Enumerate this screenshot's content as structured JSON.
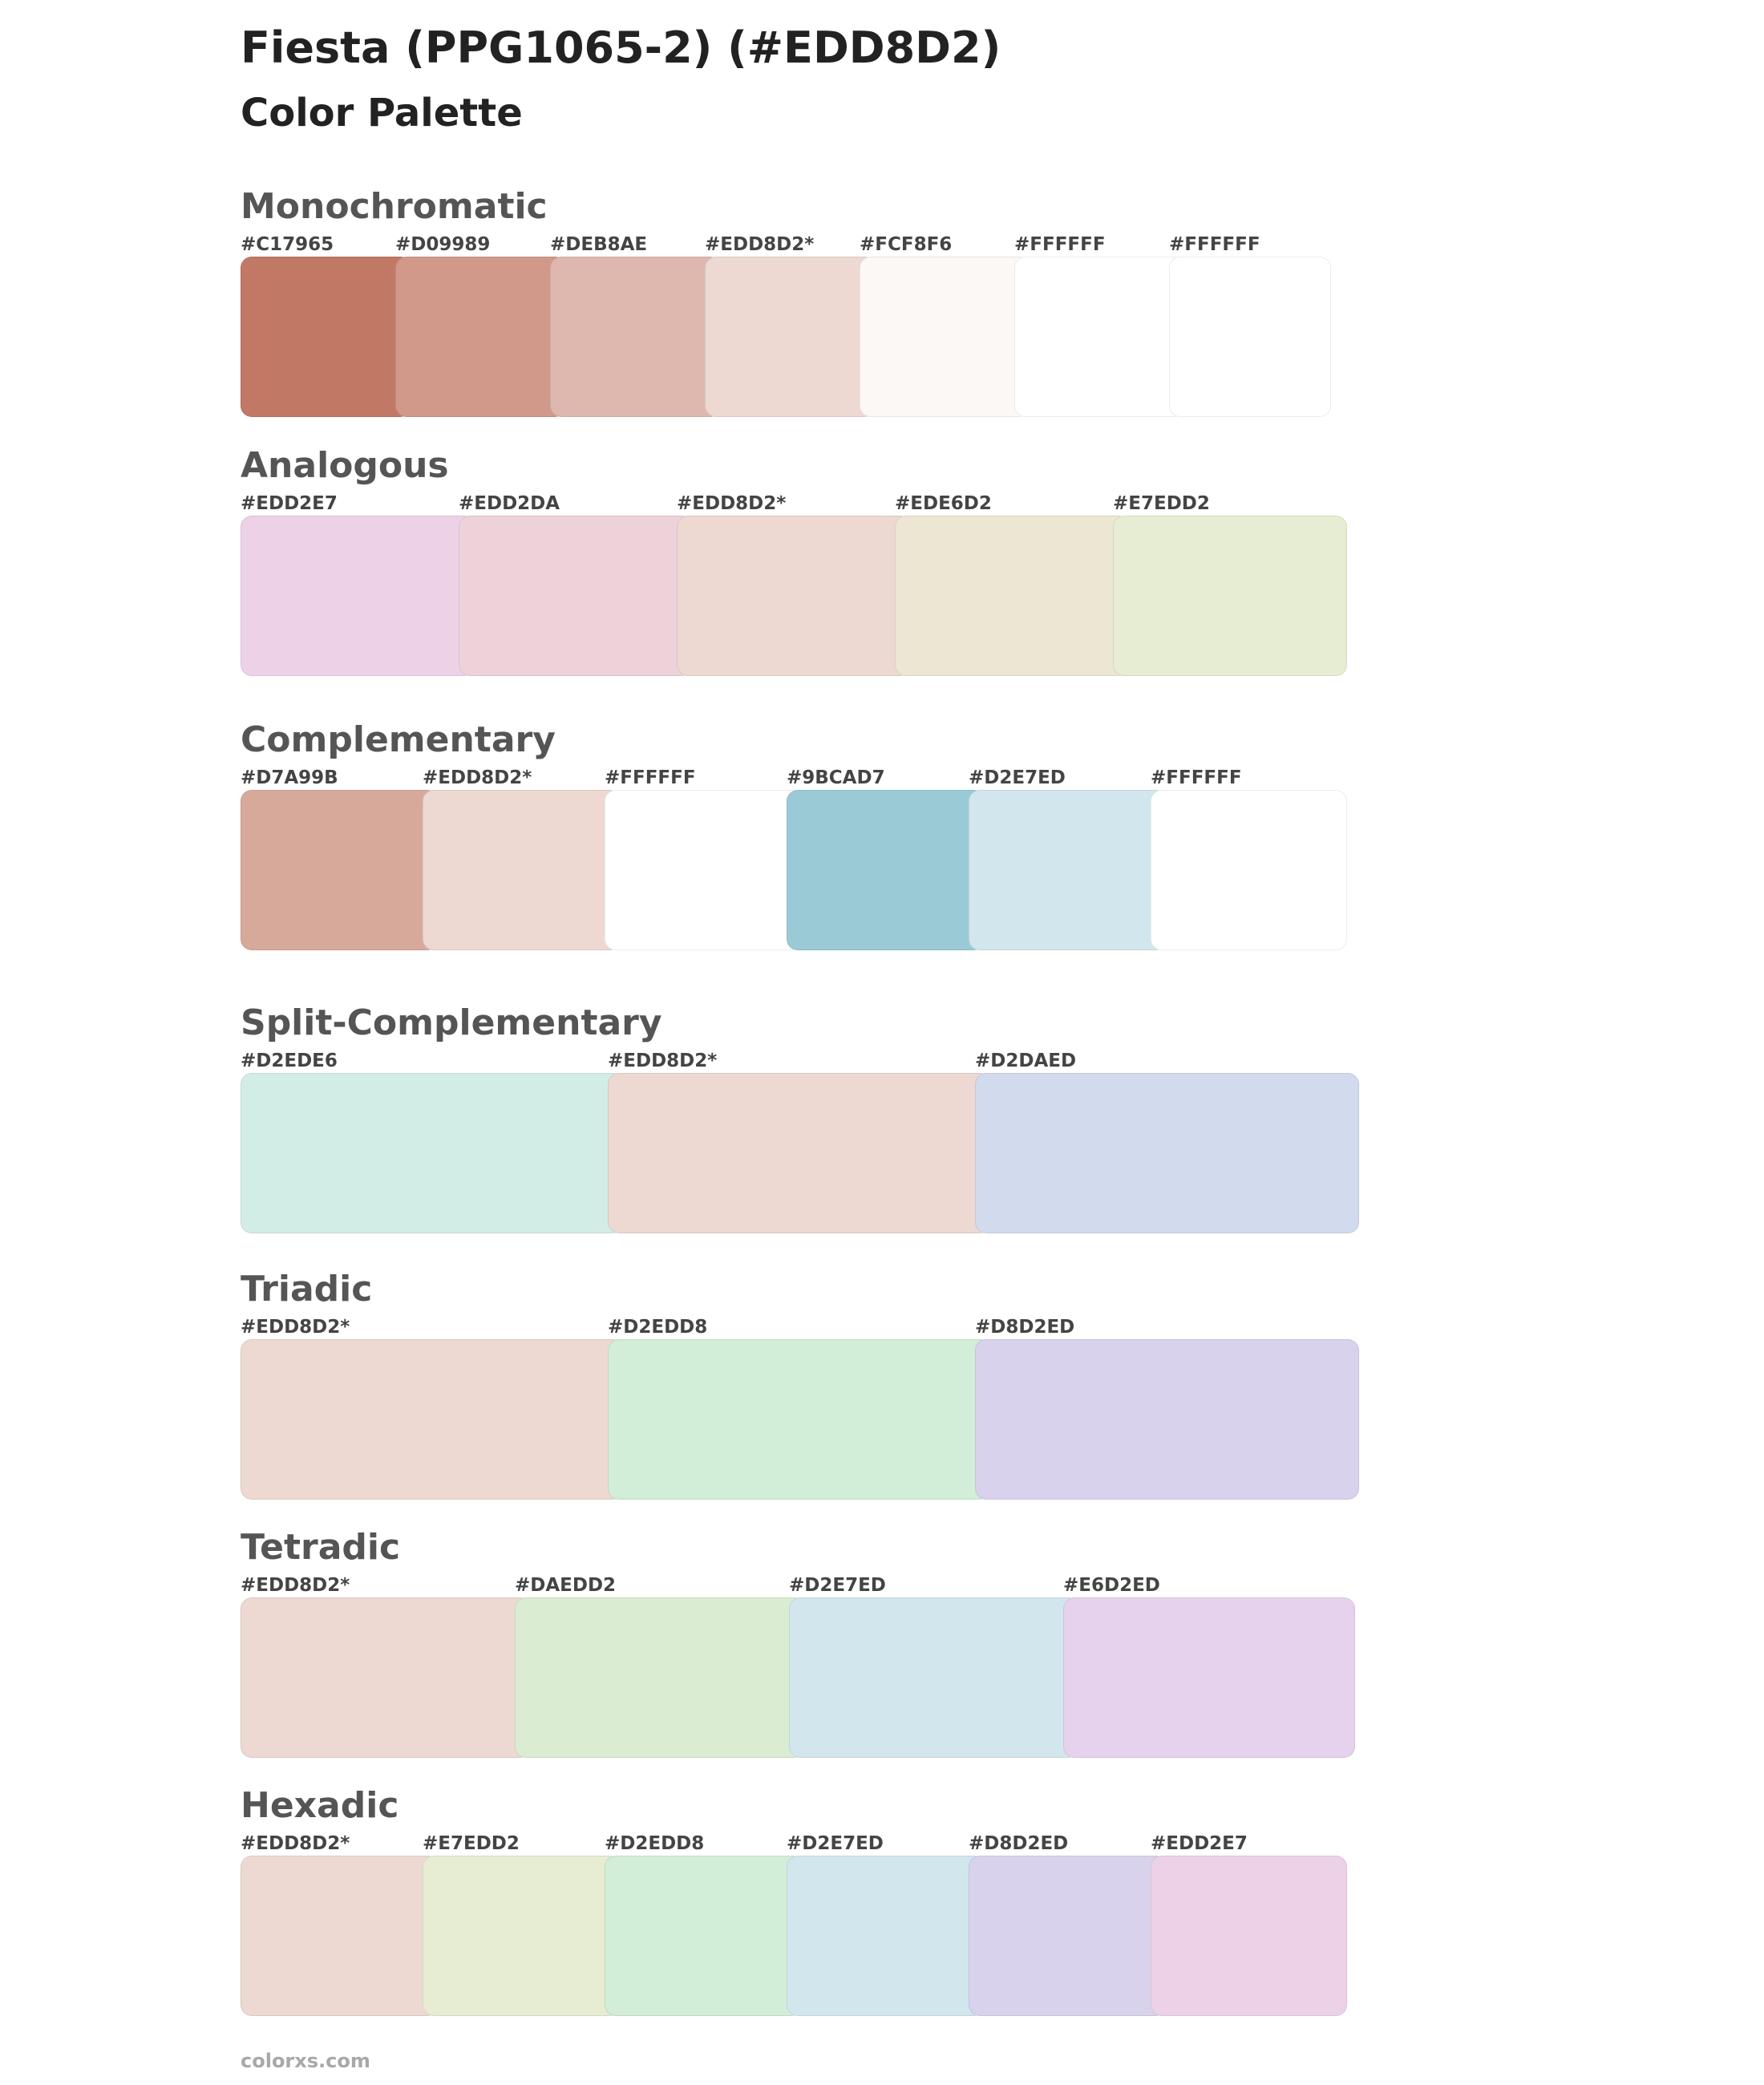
{
  "header": {
    "title": "Fiesta (PPG1065-2) (#EDD8D2)",
    "subtitle": "Color Palette"
  },
  "sections": [
    {
      "title": "Monochromatic",
      "colors": [
        {
          "label": "#C17965",
          "hex": "#C17965"
        },
        {
          "label": "#D09989",
          "hex": "#D09989"
        },
        {
          "label": "#DEB8AE",
          "hex": "#DEB8AE"
        },
        {
          "label": "#EDD8D2*",
          "hex": "#EDD8D2"
        },
        {
          "label": "#FCF8F6",
          "hex": "#FCF8F6"
        },
        {
          "label": "#FFFFFF",
          "hex": "#FFFFFF"
        },
        {
          "label": "#FFFFFF",
          "hex": "#FFFFFF"
        }
      ]
    },
    {
      "title": "Analogous",
      "colors": [
        {
          "label": "#EDD2E7",
          "hex": "#EDD2E7"
        },
        {
          "label": "#EDD2DA",
          "hex": "#EDD2DA"
        },
        {
          "label": "#EDD8D2*",
          "hex": "#EDD8D2"
        },
        {
          "label": "#EDE6D2",
          "hex": "#EDE6D2"
        },
        {
          "label": "#E7EDD2",
          "hex": "#E7EDD2"
        }
      ]
    },
    {
      "title": "Complementary",
      "colors": [
        {
          "label": "#D7A99B",
          "hex": "#D7A99B"
        },
        {
          "label": "#EDD8D2*",
          "hex": "#EDD8D2"
        },
        {
          "label": "#FFFFFF",
          "hex": "#FFFFFF"
        },
        {
          "label": "#9BCAD7",
          "hex": "#9BCAD7"
        },
        {
          "label": "#D2E7ED",
          "hex": "#D2E7ED"
        },
        {
          "label": "#FFFFFF",
          "hex": "#FFFFFF"
        }
      ]
    },
    {
      "title": "Split-Complementary",
      "colors": [
        {
          "label": "#D2EDE6",
          "hex": "#D2EDE6"
        },
        {
          "label": "#EDD8D2*",
          "hex": "#EDD8D2"
        },
        {
          "label": "#D2DAED",
          "hex": "#D2DAED"
        }
      ]
    },
    {
      "title": "Triadic",
      "colors": [
        {
          "label": "#EDD8D2*",
          "hex": "#EDD8D2"
        },
        {
          "label": "#D2EDD8",
          "hex": "#D2EDD8"
        },
        {
          "label": "#D8D2ED",
          "hex": "#D8D2ED"
        }
      ]
    },
    {
      "title": "Tetradic",
      "colors": [
        {
          "label": "#EDD8D2*",
          "hex": "#EDD8D2"
        },
        {
          "label": "#DAEDD2",
          "hex": "#DAEDD2"
        },
        {
          "label": "#D2E7ED",
          "hex": "#D2E7ED"
        },
        {
          "label": "#E6D2ED",
          "hex": "#E6D2ED"
        }
      ]
    },
    {
      "title": "Hexadic",
      "colors": [
        {
          "label": "#EDD8D2*",
          "hex": "#EDD8D2"
        },
        {
          "label": "#E7EDD2",
          "hex": "#E7EDD2"
        },
        {
          "label": "#D2EDD8",
          "hex": "#D2EDD8"
        },
        {
          "label": "#D2E7ED",
          "hex": "#D2E7ED"
        },
        {
          "label": "#D8D2ED",
          "hex": "#D8D2ED"
        },
        {
          "label": "#EDD2E7",
          "hex": "#EDD2E7"
        }
      ]
    }
  ],
  "footer": {
    "text": "colorxs.com"
  }
}
